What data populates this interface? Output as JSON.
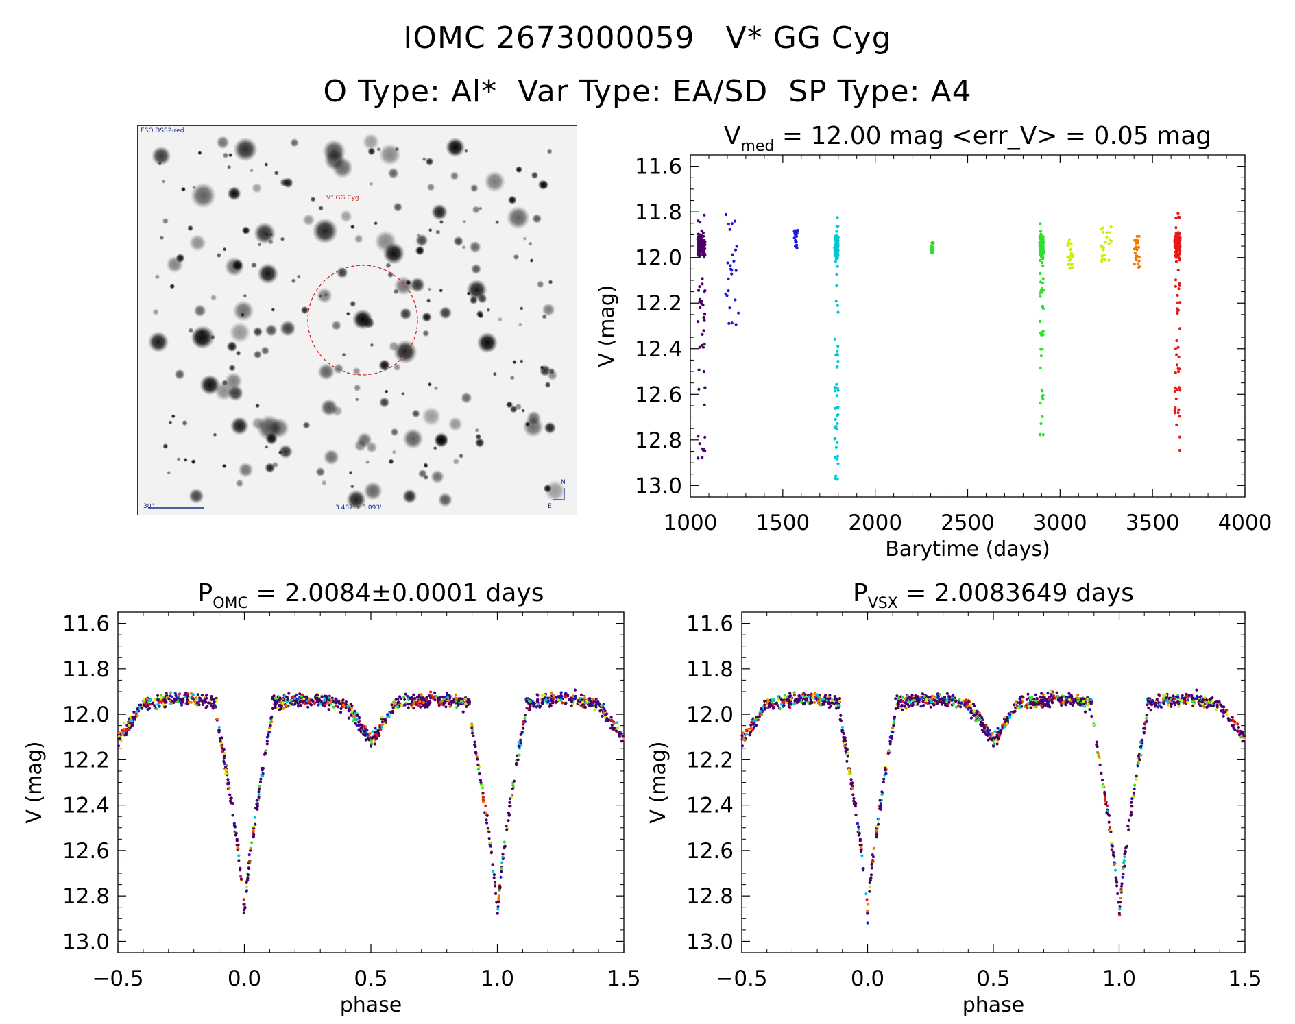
{
  "header": {
    "line1": "IOMC 2673000059   V* GG Cyg",
    "line2": "O Type: Al*  Var Type: EA/SD  SP Type: A4"
  },
  "finder_chart": {
    "survey_label": "ESO DSS2-red",
    "target_label": "V* GG Cyg",
    "scale_label": "30\"",
    "size_label": "3.487' x 3.093'",
    "north_label": "N",
    "east_label": "E"
  },
  "colors": {
    "palette": [
      "#4b0068",
      "#1a1ad6",
      "#00c8d8",
      "#2ee02e",
      "#c8f000",
      "#f07800",
      "#e81818"
    ],
    "target_circle": "#cc2222",
    "finder_label": "#1a2a8a"
  },
  "chart_data": [
    {
      "id": "lightcurve",
      "type": "scatter",
      "title": "V_med = 12.00 mag <err_V> = 0.05 mag",
      "title_parts": {
        "pre": "V",
        "sub": "med",
        "post": " = 12.00 mag <err_V> = 0.05 mag"
      },
      "xlabel": "Barytime (days)",
      "ylabel": "V (mag)",
      "xlim": [
        1000,
        4000
      ],
      "ylim": [
        11.55,
        13.05
      ],
      "y_inverted": true,
      "xticks": [
        1000,
        1500,
        2000,
        2500,
        3000,
        3500,
        4000
      ],
      "yticks": [
        11.6,
        11.8,
        12.0,
        12.2,
        12.4,
        12.6,
        12.8,
        13.0
      ],
      "observing_seasons": [
        {
          "x_range": [
            1040,
            1080
          ],
          "v_range": [
            11.8,
            12.9
          ],
          "color_index": 0
        },
        {
          "x_range": [
            1190,
            1260
          ],
          "v_range": [
            11.8,
            12.3
          ],
          "color_index": 1
        },
        {
          "x_range": [
            1560,
            1580
          ],
          "v_range": [
            11.88,
            11.96
          ],
          "color_index": 1
        },
        {
          "x_range": [
            1780,
            1800
          ],
          "v_range": [
            11.82,
            12.98
          ],
          "color_index": 2
        },
        {
          "x_range": [
            2300,
            2315
          ],
          "v_range": [
            11.93,
            11.98
          ],
          "color_index": 3
        },
        {
          "x_range": [
            2890,
            2910
          ],
          "v_range": [
            11.85,
            12.78
          ],
          "color_index": 3
        },
        {
          "x_range": [
            3040,
            3070
          ],
          "v_range": [
            11.9,
            12.05
          ],
          "color_index": 4
        },
        {
          "x_range": [
            3220,
            3280
          ],
          "v_range": [
            11.86,
            12.02
          ],
          "color_index": 4
        },
        {
          "x_range": [
            3400,
            3430
          ],
          "v_range": [
            11.9,
            12.05
          ],
          "color_index": 5
        },
        {
          "x_range": [
            3620,
            3650
          ],
          "v_range": [
            11.8,
            12.86
          ],
          "color_index": 6
        }
      ]
    },
    {
      "id": "phase_omc",
      "type": "scatter",
      "title": "P_OMC = 2.0084±0.0001 days",
      "title_parts": {
        "pre": "P",
        "sub": "OMC",
        "post": " = 2.0084±0.0001 days"
      },
      "period_days": 2.0084,
      "xlabel": "phase",
      "ylabel": "V (mag)",
      "xlim": [
        -0.5,
        1.5
      ],
      "ylim": [
        11.55,
        13.05
      ],
      "y_inverted": true,
      "xticks": [
        -0.5,
        0.0,
        0.5,
        1.0,
        1.5
      ],
      "xtick_labels": [
        "−0.5",
        "0.0",
        "0.5",
        "1.0",
        "1.5"
      ],
      "yticks": [
        11.6,
        11.8,
        12.0,
        12.2,
        12.4,
        12.6,
        12.8,
        13.0
      ],
      "light_curve_shape": {
        "baseline_mag": 11.95,
        "primary_eclipse": {
          "phase": 0.0,
          "depth_mag": 12.9
        },
        "secondary_eclipse": {
          "phase": 0.5,
          "depth_mag": 12.1
        },
        "edge_mag": 12.05
      }
    },
    {
      "id": "phase_vsx",
      "type": "scatter",
      "title": "P_VSX = 2.0083649 days",
      "title_parts": {
        "pre": "P",
        "sub": "VSX",
        "post": " = 2.0083649 days"
      },
      "period_days": 2.0083649,
      "xlabel": "phase",
      "ylabel": "V (mag)",
      "xlim": [
        -0.5,
        1.5
      ],
      "ylim": [
        11.55,
        13.05
      ],
      "y_inverted": true,
      "xticks": [
        -0.5,
        0.0,
        0.5,
        1.0,
        1.5
      ],
      "xtick_labels": [
        "−0.5",
        "0.0",
        "0.5",
        "1.0",
        "1.5"
      ],
      "yticks": [
        11.6,
        11.8,
        12.0,
        12.2,
        12.4,
        12.6,
        12.8,
        13.0
      ],
      "light_curve_shape": {
        "baseline_mag": 11.95,
        "primary_eclipse": {
          "phase": 0.0,
          "depth_mag": 12.9
        },
        "secondary_eclipse": {
          "phase": 0.5,
          "depth_mag": 12.1
        },
        "edge_mag": 12.05
      }
    }
  ]
}
